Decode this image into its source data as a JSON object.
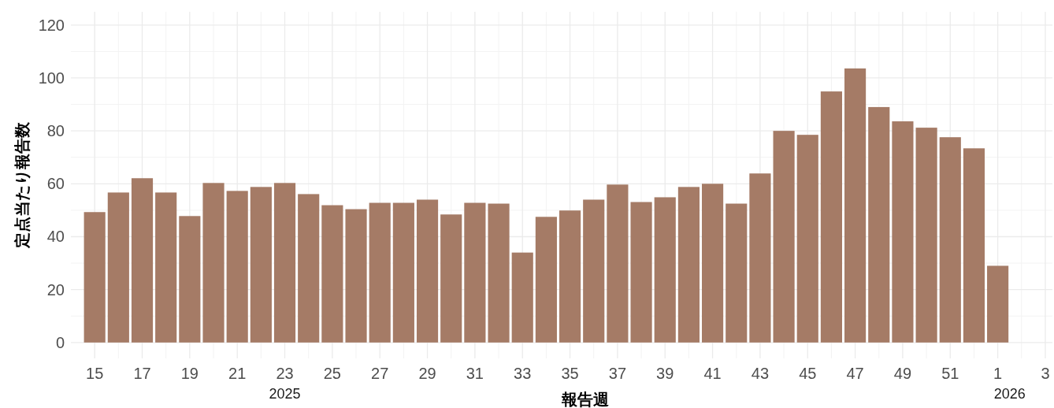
{
  "chart_data": {
    "type": "bar",
    "xlabel": "報告週",
    "ylabel": "定点当たり報告数",
    "categories": [
      "15",
      null,
      "17",
      null,
      "19",
      null,
      "21",
      null,
      "23",
      null,
      "25",
      null,
      "27",
      null,
      "29",
      null,
      "31",
      null,
      "33",
      null,
      "35",
      null,
      "37",
      null,
      "39",
      null,
      "41",
      null,
      "43",
      null,
      "45",
      null,
      "47",
      null,
      "49",
      null,
      "51",
      null,
      "1",
      null,
      "3"
    ],
    "values": [
      49.3,
      56.7,
      62.1,
      56.7,
      47.8,
      60.3,
      57.3,
      58.8,
      60.3,
      56.1,
      51.9,
      50.4,
      52.8,
      52.8,
      54.0,
      48.4,
      52.8,
      52.5,
      34.0,
      47.5,
      49.9,
      54.0,
      59.7,
      53.1,
      54.9,
      58.8,
      60.0,
      52.5,
      63.9,
      80.0,
      78.5,
      94.9,
      103.6,
      89.0,
      83.6,
      81.2,
      77.6,
      73.4,
      29.0,
      null,
      null
    ],
    "color": "#a57b66",
    "ylim": [
      -6,
      125
    ],
    "yticks": [
      0,
      20,
      40,
      60,
      80,
      100,
      120
    ],
    "grid": true,
    "annotations": [
      "2025",
      "2026"
    ]
  }
}
